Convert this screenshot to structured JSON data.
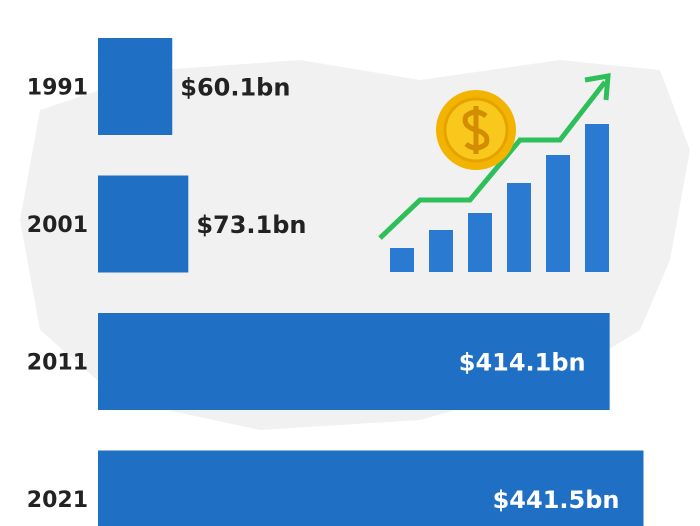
{
  "chart_data": {
    "type": "bar",
    "orientation": "horizontal",
    "categories": [
      "1991",
      "2001",
      "2011",
      "2021"
    ],
    "values": [
      60.1,
      73.1,
      414.1,
      441.5
    ],
    "value_labels": [
      "$60.1bn",
      "$73.1bn",
      "$414.1bn",
      "$441.5bn"
    ],
    "color": "#1f6fc4",
    "xlim": [
      0,
      450
    ]
  }
}
